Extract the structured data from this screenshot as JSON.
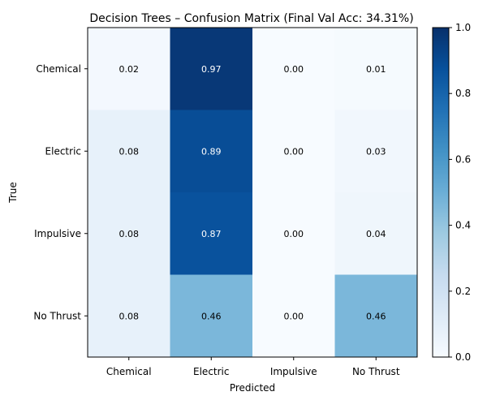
{
  "chart_data": {
    "type": "heatmap",
    "title": "Decision Trees – Confusion Matrix (Final Val Acc: 34.31%)",
    "xlabel": "Predicted",
    "ylabel": "True",
    "x_categories": [
      "Chemical",
      "Electric",
      "Impulsive",
      "No Thrust"
    ],
    "y_categories": [
      "Chemical",
      "Electric",
      "Impulsive",
      "No Thrust"
    ],
    "values": [
      [
        0.02,
        0.97,
        0.0,
        0.01
      ],
      [
        0.08,
        0.89,
        0.0,
        0.03
      ],
      [
        0.08,
        0.87,
        0.0,
        0.04
      ],
      [
        0.08,
        0.46,
        0.0,
        0.46
      ]
    ],
    "value_format": "0.00",
    "colormap": "Blues",
    "colorbar": {
      "range": [
        0,
        1
      ],
      "ticks": [
        "0.0",
        "0.2",
        "0.4",
        "0.6",
        "0.8",
        "1.0"
      ]
    }
  }
}
